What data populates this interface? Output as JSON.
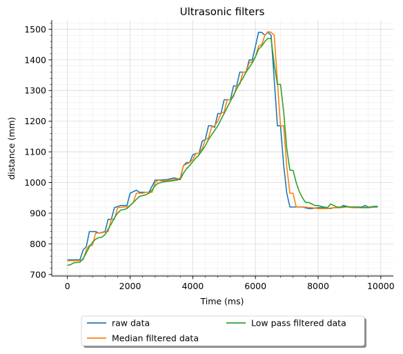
{
  "chart_data": {
    "type": "line",
    "title": "Ultrasonic filters",
    "xlabel": "Time (ms)",
    "ylabel": "distance (mm)",
    "xlim": [
      -500,
      10400
    ],
    "ylim": [
      695,
      1530
    ],
    "xticks": [
      0,
      2000,
      4000,
      6000,
      8000,
      10000
    ],
    "yticks": [
      700,
      800,
      900,
      1000,
      1100,
      1200,
      1300,
      1400,
      1500
    ],
    "grid": "major-and-minor",
    "legend": "below-center",
    "series": [
      {
        "name": "raw data",
        "color": "#1f77b4",
        "points": [
          [
            0,
            748
          ],
          [
            300,
            748
          ],
          [
            400,
            748
          ],
          [
            500,
            780
          ],
          [
            600,
            790
          ],
          [
            700,
            840
          ],
          [
            900,
            840
          ],
          [
            1000,
            835
          ],
          [
            1200,
            840
          ],
          [
            1300,
            880
          ],
          [
            1400,
            880
          ],
          [
            1500,
            918
          ],
          [
            1700,
            925
          ],
          [
            1900,
            925
          ],
          [
            2000,
            965
          ],
          [
            2200,
            975
          ],
          [
            2300,
            968
          ],
          [
            2600,
            968
          ],
          [
            2800,
            1008
          ],
          [
            3000,
            1008
          ],
          [
            3200,
            1010
          ],
          [
            3400,
            1015
          ],
          [
            3600,
            1010
          ],
          [
            3700,
            1055
          ],
          [
            3800,
            1065
          ],
          [
            3900,
            1065
          ],
          [
            4000,
            1090
          ],
          [
            4100,
            1095
          ],
          [
            4200,
            1095
          ],
          [
            4300,
            1135
          ],
          [
            4400,
            1140
          ],
          [
            4500,
            1185
          ],
          [
            4600,
            1185
          ],
          [
            4700,
            1180
          ],
          [
            4800,
            1225
          ],
          [
            4900,
            1225
          ],
          [
            5000,
            1270
          ],
          [
            5100,
            1270
          ],
          [
            5200,
            1270
          ],
          [
            5300,
            1315
          ],
          [
            5400,
            1315
          ],
          [
            5500,
            1360
          ],
          [
            5600,
            1360
          ],
          [
            5700,
            1360
          ],
          [
            5800,
            1400
          ],
          [
            5900,
            1400
          ],
          [
            6000,
            1445
          ],
          [
            6100,
            1490
          ],
          [
            6200,
            1490
          ],
          [
            6300,
            1480
          ],
          [
            6400,
            1490
          ],
          [
            6500,
            1480
          ],
          [
            6600,
            1335
          ],
          [
            6700,
            1185
          ],
          [
            6800,
            1185
          ],
          [
            6900,
            1055
          ],
          [
            7000,
            965
          ],
          [
            7100,
            920
          ],
          [
            7300,
            920
          ],
          [
            7500,
            920
          ],
          [
            7700,
            915
          ],
          [
            7800,
            915
          ],
          [
            8000,
            918
          ],
          [
            8200,
            918
          ],
          [
            8400,
            915
          ],
          [
            8500,
            918
          ],
          [
            8700,
            918
          ],
          [
            8800,
            925
          ],
          [
            9000,
            920
          ],
          [
            9200,
            920
          ],
          [
            9400,
            920
          ],
          [
            9500,
            925
          ],
          [
            9600,
            920
          ],
          [
            9800,
            922
          ],
          [
            9900,
            922
          ]
        ]
      },
      {
        "name": "Median filtered data",
        "color": "#ff7f0e",
        "points": [
          [
            0,
            745
          ],
          [
            400,
            745
          ],
          [
            500,
            748
          ],
          [
            600,
            780
          ],
          [
            700,
            795
          ],
          [
            800,
            795
          ],
          [
            900,
            835
          ],
          [
            1000,
            835
          ],
          [
            1200,
            838
          ],
          [
            1300,
            840
          ],
          [
            1400,
            880
          ],
          [
            1500,
            880
          ],
          [
            1600,
            918
          ],
          [
            1800,
            920
          ],
          [
            1900,
            920
          ],
          [
            2000,
            925
          ],
          [
            2100,
            935
          ],
          [
            2200,
            965
          ],
          [
            2400,
            965
          ],
          [
            2500,
            968
          ],
          [
            2700,
            968
          ],
          [
            2800,
            1000
          ],
          [
            2900,
            1008
          ],
          [
            3000,
            1005
          ],
          [
            3300,
            1008
          ],
          [
            3400,
            1010
          ],
          [
            3500,
            1010
          ],
          [
            3600,
            1015
          ],
          [
            3700,
            1055
          ],
          [
            3800,
            1060
          ],
          [
            3900,
            1065
          ],
          [
            4000,
            1075
          ],
          [
            4100,
            1095
          ],
          [
            4200,
            1095
          ],
          [
            4300,
            1110
          ],
          [
            4400,
            1140
          ],
          [
            4500,
            1145
          ],
          [
            4600,
            1180
          ],
          [
            4700,
            1185
          ],
          [
            4800,
            1200
          ],
          [
            4900,
            1225
          ],
          [
            5000,
            1230
          ],
          [
            5100,
            1270
          ],
          [
            5200,
            1270
          ],
          [
            5300,
            1280
          ],
          [
            5400,
            1315
          ],
          [
            5500,
            1320
          ],
          [
            5600,
            1360
          ],
          [
            5700,
            1360
          ],
          [
            5800,
            1390
          ],
          [
            5900,
            1395
          ],
          [
            6000,
            1410
          ],
          [
            6100,
            1445
          ],
          [
            6200,
            1450
          ],
          [
            6300,
            1480
          ],
          [
            6400,
            1492
          ],
          [
            6500,
            1490
          ],
          [
            6600,
            1480
          ],
          [
            6700,
            1330
          ],
          [
            6800,
            1185
          ],
          [
            6900,
            1185
          ],
          [
            7000,
            1050
          ],
          [
            7100,
            965
          ],
          [
            7200,
            965
          ],
          [
            7300,
            920
          ],
          [
            7600,
            920
          ],
          [
            7700,
            918
          ],
          [
            7800,
            918
          ],
          [
            8000,
            915
          ],
          [
            8300,
            915
          ],
          [
            8500,
            918
          ],
          [
            8700,
            918
          ],
          [
            8900,
            920
          ],
          [
            9100,
            918
          ],
          [
            9400,
            918
          ],
          [
            9600,
            920
          ],
          [
            9900,
            920
          ]
        ]
      },
      {
        "name": "Low pass filtered data",
        "color": "#2ca02c",
        "points": [
          [
            0,
            730
          ],
          [
            100,
            732
          ],
          [
            200,
            738
          ],
          [
            400,
            740
          ],
          [
            500,
            752
          ],
          [
            600,
            770
          ],
          [
            700,
            790
          ],
          [
            800,
            805
          ],
          [
            900,
            815
          ],
          [
            1000,
            820
          ],
          [
            1100,
            822
          ],
          [
            1200,
            830
          ],
          [
            1300,
            848
          ],
          [
            1400,
            865
          ],
          [
            1500,
            885
          ],
          [
            1600,
            900
          ],
          [
            1700,
            910
          ],
          [
            1800,
            912
          ],
          [
            1900,
            915
          ],
          [
            2000,
            925
          ],
          [
            2100,
            935
          ],
          [
            2200,
            945
          ],
          [
            2300,
            955
          ],
          [
            2500,
            960
          ],
          [
            2600,
            965
          ],
          [
            2700,
            975
          ],
          [
            2800,
            990
          ],
          [
            2900,
            998
          ],
          [
            3000,
            1000
          ],
          [
            3100,
            1003
          ],
          [
            3300,
            1005
          ],
          [
            3500,
            1008
          ],
          [
            3600,
            1010
          ],
          [
            3700,
            1030
          ],
          [
            3800,
            1045
          ],
          [
            3900,
            1055
          ],
          [
            4000,
            1068
          ],
          [
            4100,
            1080
          ],
          [
            4200,
            1090
          ],
          [
            4300,
            1105
          ],
          [
            4400,
            1120
          ],
          [
            4500,
            1140
          ],
          [
            4600,
            1155
          ],
          [
            4700,
            1170
          ],
          [
            4800,
            1185
          ],
          [
            4900,
            1205
          ],
          [
            5000,
            1225
          ],
          [
            5100,
            1245
          ],
          [
            5200,
            1265
          ],
          [
            5300,
            1285
          ],
          [
            5400,
            1305
          ],
          [
            5500,
            1325
          ],
          [
            5600,
            1340
          ],
          [
            5700,
            1360
          ],
          [
            5800,
            1375
          ],
          [
            5900,
            1390
          ],
          [
            6000,
            1410
          ],
          [
            6100,
            1435
          ],
          [
            6200,
            1445
          ],
          [
            6300,
            1460
          ],
          [
            6400,
            1470
          ],
          [
            6500,
            1470
          ],
          [
            6600,
            1385
          ],
          [
            6700,
            1320
          ],
          [
            6800,
            1320
          ],
          [
            6900,
            1230
          ],
          [
            7000,
            1110
          ],
          [
            7100,
            1040
          ],
          [
            7200,
            1040
          ],
          [
            7300,
            1000
          ],
          [
            7400,
            970
          ],
          [
            7500,
            950
          ],
          [
            7600,
            935
          ],
          [
            7700,
            935
          ],
          [
            7800,
            930
          ],
          [
            7900,
            925
          ],
          [
            8000,
            925
          ],
          [
            8100,
            922
          ],
          [
            8200,
            920
          ],
          [
            8300,
            918
          ],
          [
            8400,
            930
          ],
          [
            8500,
            925
          ],
          [
            8600,
            920
          ],
          [
            8700,
            920
          ],
          [
            8800,
            920
          ],
          [
            8900,
            922
          ],
          [
            9000,
            920
          ],
          [
            9200,
            920
          ],
          [
            9400,
            918
          ],
          [
            9600,
            918
          ],
          [
            9800,
            920
          ],
          [
            9900,
            920
          ]
        ]
      }
    ]
  }
}
